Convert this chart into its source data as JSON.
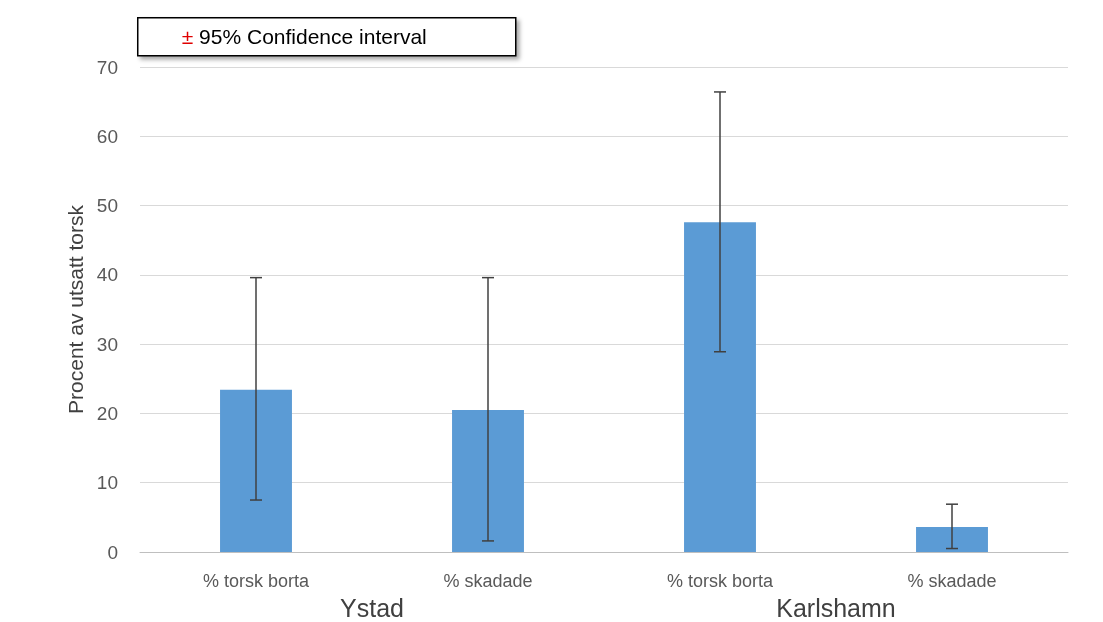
{
  "chart_data": {
    "type": "bar",
    "ylabel": "Procent av utsatt torsk",
    "categories": [
      "% torsk borta",
      "% skadade",
      "% torsk borta",
      "% skadade"
    ],
    "values": [
      23.4,
      20.5,
      47.6,
      3.6
    ],
    "color": "#5b9bd5",
    "errors": [
      [
        7.5,
        39.6
      ],
      [
        1.6,
        39.6
      ],
      [
        28.9,
        66.4
      ],
      [
        0.5,
        6.9
      ]
    ],
    "ylim": [
      0,
      70
    ],
    "yticks": [
      0,
      10,
      20,
      30,
      40,
      50,
      60,
      70
    ],
    "grid": "y",
    "annotations": [
      "± 95% Confidence interval",
      "Ystad",
      "Karlshamn"
    ]
  }
}
